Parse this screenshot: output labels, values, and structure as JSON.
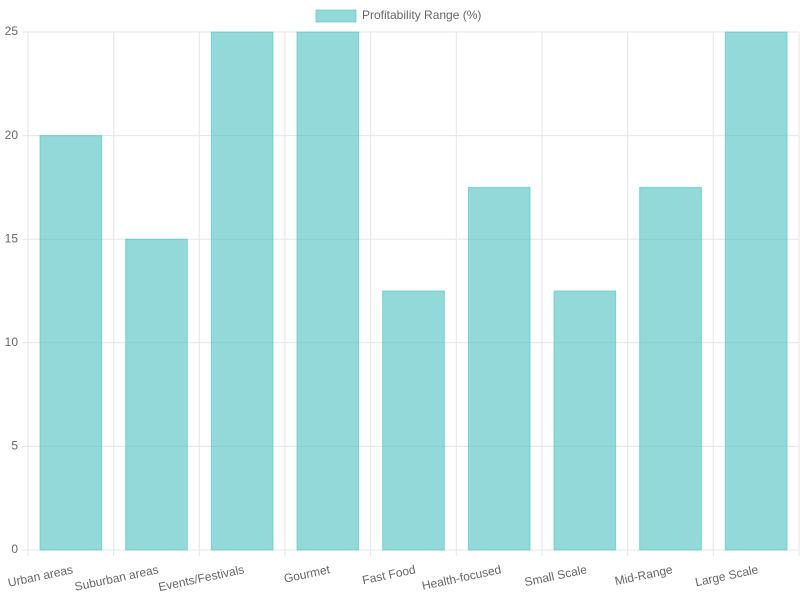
{
  "chart_data": {
    "type": "bar",
    "categories": [
      "Urban areas",
      "Suburban areas",
      "Events/Festivals",
      "Gourmet",
      "Fast Food",
      "Health-focused",
      "Small Scale",
      "Mid-Range",
      "Large Scale"
    ],
    "series": [
      {
        "name": "Profitability Range (%)",
        "color": "rgba(75,192,192,0.6)",
        "values": [
          20,
          15,
          25,
          25,
          12.5,
          17.5,
          12.5,
          17.5,
          25
        ]
      }
    ],
    "ylim": [
      0,
      25
    ],
    "yticks": [
      0,
      5,
      10,
      15,
      20,
      25
    ],
    "grid": true,
    "legend": "top"
  }
}
